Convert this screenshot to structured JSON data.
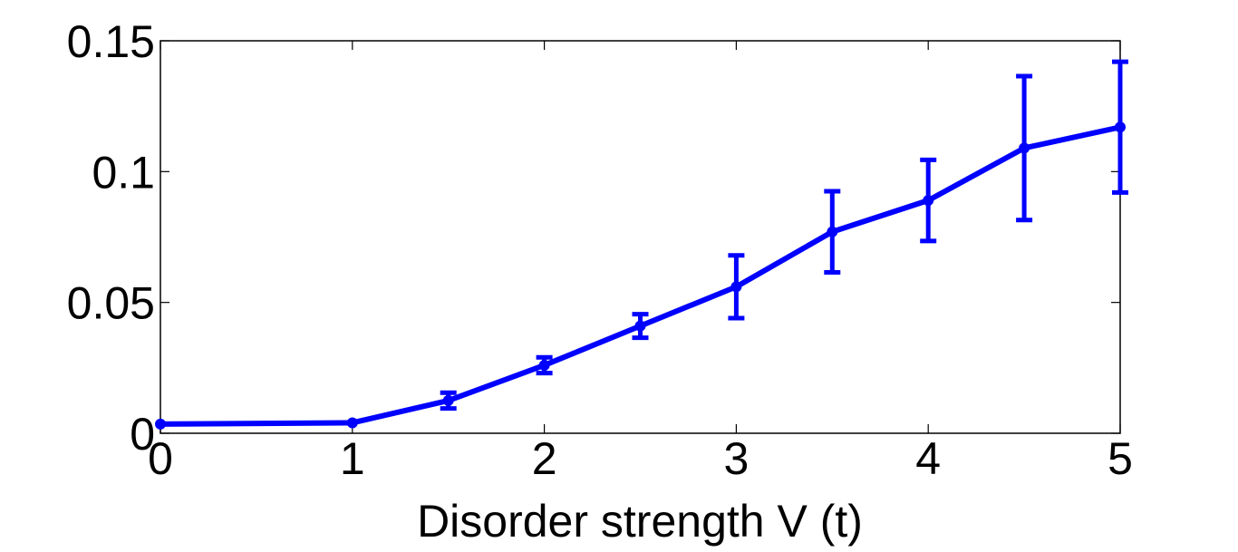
{
  "chart_data": {
    "type": "line",
    "title": "",
    "xlabel": "Disorder strength V (t)",
    "ylabel": "",
    "xlim": [
      0,
      5
    ],
    "ylim": [
      0,
      0.15
    ],
    "xticks": [
      0,
      1,
      2,
      3,
      4,
      5
    ],
    "xtick_labels": [
      "0",
      "1",
      "2",
      "3",
      "4",
      "5"
    ],
    "yticks": [
      0,
      0.05,
      0.1,
      0.15
    ],
    "ytick_labels": [
      "0",
      "0.05",
      "0.1",
      "0.15"
    ],
    "grid": false,
    "series": [
      {
        "color": "#0000ff",
        "x": [
          0,
          1,
          1.5,
          2,
          2.5,
          3,
          3.5,
          4,
          4.5,
          5
        ],
        "y": [
          0.0035,
          0.004,
          0.0125,
          0.026,
          0.041,
          0.056,
          0.077,
          0.089,
          0.109,
          0.117
        ],
        "error": [
          0,
          0,
          0.003,
          0.003,
          0.0045,
          0.012,
          0.0155,
          0.0155,
          0.0275,
          0.025
        ]
      }
    ]
  }
}
